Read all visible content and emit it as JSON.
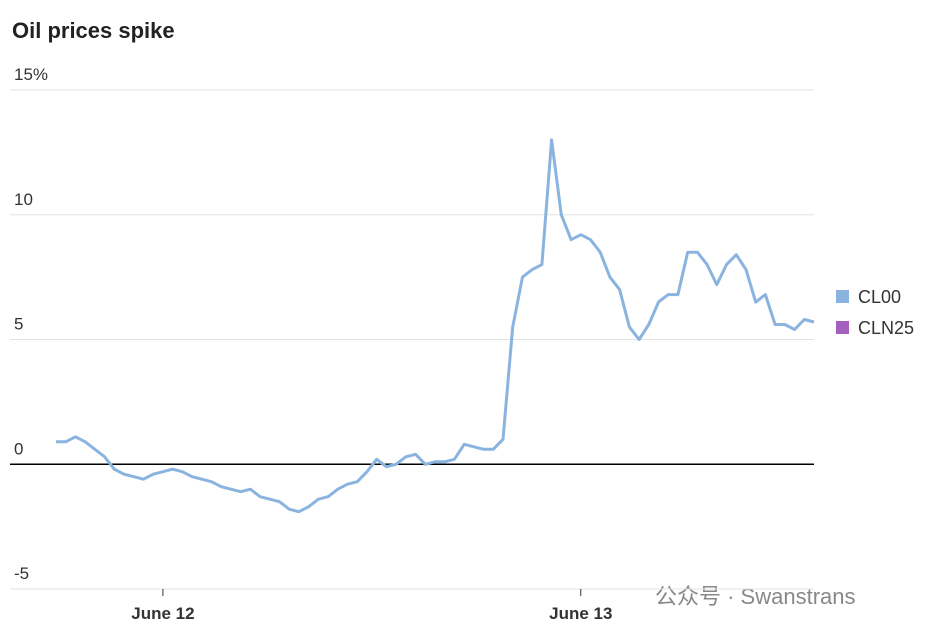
{
  "chart_data": {
    "type": "line",
    "title": "Oil prices spike",
    "categories": [
      null,
      null,
      null,
      null,
      null,
      null,
      null,
      null,
      null,
      null,
      null,
      "June 12",
      null,
      null,
      null,
      null,
      null,
      null,
      null,
      null,
      null,
      null,
      null,
      null,
      null,
      null,
      null,
      null,
      null,
      null,
      null,
      null,
      null,
      null,
      null,
      null,
      null,
      null,
      null,
      null,
      null,
      null,
      null,
      null,
      null,
      null,
      null,
      null,
      null,
      null,
      null,
      null,
      null,
      null,
      "June 13",
      null,
      null,
      null,
      null,
      null,
      null,
      null,
      null,
      null,
      null,
      null,
      null,
      null,
      null,
      null,
      null,
      null,
      null,
      null,
      null,
      null,
      null,
      null,
      null
    ],
    "series": [
      {
        "name": "CL00",
        "color": "#8ab4df",
        "values": [
          0.9,
          0.9,
          1.1,
          0.9,
          0.6,
          0.3,
          -0.2,
          -0.4,
          -0.5,
          -0.6,
          -0.4,
          -0.3,
          -0.2,
          -0.3,
          -0.5,
          -0.6,
          -0.7,
          -0.9,
          -1.0,
          -1.1,
          -1.0,
          -1.3,
          -1.4,
          -1.5,
          -1.8,
          -1.9,
          -1.7,
          -1.4,
          -1.3,
          -1.0,
          -0.8,
          -0.7,
          -0.3,
          0.2,
          -0.1,
          0.0,
          0.3,
          0.4,
          0.0,
          0.1,
          0.1,
          0.2,
          0.8,
          0.7,
          0.6,
          0.6,
          1.0,
          5.5,
          7.5,
          7.8,
          8.0,
          13.0,
          10.0,
          9.0,
          9.2,
          9.0,
          8.5,
          7.5,
          7.0,
          5.5,
          5.0,
          5.6,
          6.5,
          6.8,
          6.8,
          8.5,
          8.5,
          8.0,
          7.2,
          8.0,
          8.4,
          7.8,
          6.5,
          6.8,
          5.6,
          5.6,
          5.4,
          5.8,
          5.7
        ]
      },
      {
        "name": "CLN25",
        "color": "#a55fbf",
        "values": [
          null,
          null,
          null,
          null,
          null,
          null,
          null,
          null,
          null,
          null,
          null,
          null,
          null,
          null,
          null,
          null,
          null,
          null,
          null,
          null,
          null,
          null,
          null,
          null,
          null,
          null,
          null,
          null,
          null,
          null,
          null,
          null,
          null,
          null,
          null,
          null,
          null,
          null,
          null,
          null,
          null,
          null,
          null,
          null,
          null,
          null,
          null,
          null,
          null,
          null,
          null,
          null,
          null,
          null,
          null,
          null,
          null,
          null,
          null,
          null,
          null,
          null,
          null,
          null,
          null,
          null,
          null,
          null,
          null,
          null,
          null,
          null,
          null,
          null,
          null,
          null,
          null,
          null,
          null
        ]
      }
    ],
    "ylim": [
      -5,
      15
    ],
    "yticks": [
      -5,
      0,
      5,
      10,
      {
        "value": 15,
        "label": "15%"
      }
    ],
    "grid": true
  },
  "watermark": "公众号 · Swanstrans"
}
